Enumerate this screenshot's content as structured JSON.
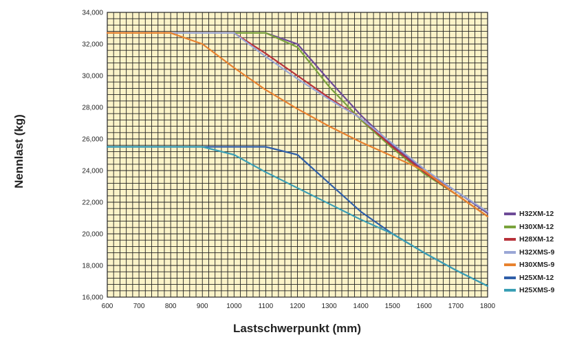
{
  "chart_data": {
    "type": "line",
    "title": "",
    "xlabel": "Lastschwerpunkt (mm)",
    "ylabel": "Nennlast (kg)",
    "xlim": [
      600,
      1800
    ],
    "ylim": [
      16000,
      34000
    ],
    "x_ticks": [
      "600",
      "700",
      "800",
      "900",
      "1000",
      "1100",
      "1200",
      "1300",
      "1400",
      "1500",
      "1600",
      "1700",
      "1800"
    ],
    "y_ticks": [
      "16,000",
      "18,000",
      "20,000",
      "22,000",
      "24,000",
      "26,000",
      "28,000",
      "30,000",
      "32,000",
      "34,000"
    ],
    "grid": true,
    "legend_position": "right",
    "plot_background": "#fbf3c8",
    "series": [
      {
        "name": "H32XM-12",
        "color": "#6d4a97",
        "x": [
          600,
          1000,
          1100,
          1200,
          1300,
          1400,
          1500,
          1600,
          1700,
          1800
        ],
        "y": [
          32700,
          32700,
          32700,
          32000,
          29700,
          27500,
          25600,
          24000,
          22700,
          21300
        ]
      },
      {
        "name": "H30XM-12",
        "color": "#7aa33c",
        "x": [
          600,
          1000,
          1100,
          1200,
          1300,
          1400,
          1500,
          1600,
          1700,
          1800
        ],
        "y": [
          32700,
          32700,
          32700,
          31800,
          29300,
          27200,
          25400,
          23800,
          22500,
          21100
        ]
      },
      {
        "name": "H28XM-12",
        "color": "#b8323a",
        "x": [
          600,
          1000,
          1100,
          1200,
          1300,
          1400,
          1500,
          1600,
          1700,
          1800
        ],
        "y": [
          32700,
          32700,
          31400,
          30000,
          28600,
          27300,
          25500,
          23900,
          22500,
          21100
        ]
      },
      {
        "name": "H32XMS-9",
        "color": "#9aa7d6",
        "x": [
          600,
          1000,
          1100,
          1200,
          1300,
          1400,
          1500,
          1600,
          1700,
          1800
        ],
        "y": [
          32700,
          32700,
          31200,
          29800,
          28500,
          27300,
          25700,
          24100,
          22700,
          21400
        ]
      },
      {
        "name": "H30XMS-9",
        "color": "#e8822e",
        "x": [
          600,
          800,
          900,
          1000,
          1100,
          1200,
          1300,
          1400,
          1500,
          1600,
          1700,
          1800
        ],
        "y": [
          32700,
          32700,
          32000,
          30500,
          29100,
          27900,
          26800,
          25800,
          24900,
          24000,
          22500,
          21100
        ]
      },
      {
        "name": "H25XM-12",
        "color": "#2f5fa8",
        "x": [
          600,
          1000,
          1100,
          1200,
          1300,
          1400,
          1500,
          1600,
          1700,
          1800
        ],
        "y": [
          25500,
          25500,
          25500,
          25000,
          23200,
          21400,
          20000,
          18800,
          17700,
          16700
        ]
      },
      {
        "name": "H25XMS-9",
        "color": "#3a9fb5",
        "x": [
          600,
          900,
          1000,
          1100,
          1200,
          1300,
          1400,
          1500,
          1600,
          1700,
          1800
        ],
        "y": [
          25500,
          25500,
          25000,
          23900,
          22900,
          21900,
          20900,
          20000,
          18800,
          17700,
          16700
        ]
      }
    ]
  }
}
